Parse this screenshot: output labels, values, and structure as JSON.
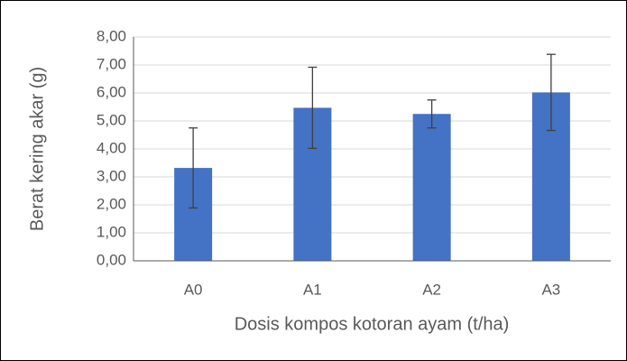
{
  "chart_data": {
    "type": "bar",
    "categories": [
      "A0",
      "A1",
      "A2",
      "A3"
    ],
    "values": [
      3.32,
      5.47,
      5.25,
      6.02
    ],
    "errors": [
      1.43,
      1.45,
      0.5,
      1.36
    ],
    "color": "#4472c4",
    "error_color": "#404040",
    "x_label": "Dosis kompos kotoran ayam (t/ha)",
    "y_label": "Berat kering akar (g)",
    "ylim": [
      0,
      8
    ],
    "yticks": [
      {
        "value": 0,
        "label": "0,00"
      },
      {
        "value": 1,
        "label": "1,00"
      },
      {
        "value": 2,
        "label": "2,00"
      },
      {
        "value": 3,
        "label": "3,00"
      },
      {
        "value": 4,
        "label": "4,00"
      },
      {
        "value": 5,
        "label": "5,00"
      },
      {
        "value": 6,
        "label": "6,00"
      },
      {
        "value": 7,
        "label": "7,00"
      },
      {
        "value": 8,
        "label": "8,00"
      }
    ],
    "grid": true
  }
}
